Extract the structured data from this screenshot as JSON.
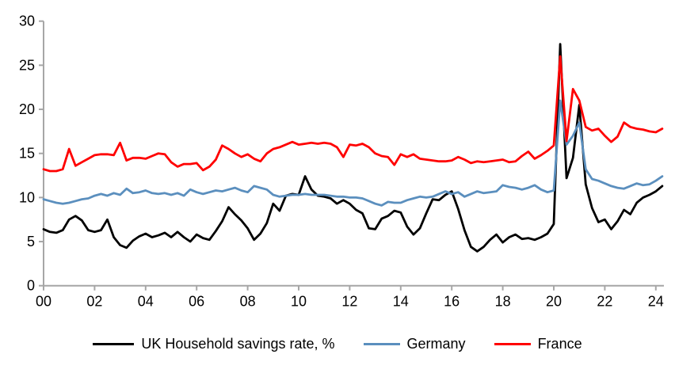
{
  "chart_data": {
    "type": "line",
    "title": "",
    "x_axis": {
      "tick_labels": [
        "00",
        "02",
        "04",
        "06",
        "08",
        "10",
        "12",
        "14",
        "16",
        "18",
        "20",
        "22",
        "24"
      ],
      "tick_years": [
        2000,
        2002,
        2004,
        2006,
        2008,
        2010,
        2012,
        2014,
        2016,
        2018,
        2020,
        2022,
        2024
      ],
      "range": [
        2000,
        2024.5
      ],
      "frequency": "quarterly"
    },
    "y_axis": {
      "tick_labels": [
        "0",
        "5",
        "10",
        "15",
        "20",
        "25",
        "30"
      ],
      "ticks": [
        0,
        5,
        10,
        15,
        20,
        25,
        30
      ],
      "range": [
        0,
        30
      ]
    },
    "grid": "off",
    "legend_position": "bottom",
    "x_start": 2000.0,
    "x_step": 0.25,
    "series": [
      {
        "name": "UK Household savings rate, %",
        "slug": "uk",
        "color": "#000000",
        "values": [
          6.4,
          6.1,
          6.0,
          6.3,
          7.5,
          7.9,
          7.4,
          6.3,
          6.1,
          6.3,
          7.5,
          5.5,
          4.6,
          4.3,
          5.1,
          5.6,
          5.9,
          5.5,
          5.7,
          6.0,
          5.5,
          6.1,
          5.5,
          5.0,
          5.8,
          5.4,
          5.2,
          6.2,
          7.3,
          8.9,
          8.1,
          7.4,
          6.5,
          5.2,
          5.9,
          7.1,
          9.3,
          8.5,
          10.2,
          10.4,
          10.3,
          12.4,
          10.9,
          10.2,
          10.1,
          9.9,
          9.3,
          9.7,
          9.3,
          8.6,
          8.2,
          6.5,
          6.4,
          7.6,
          7.9,
          8.5,
          8.3,
          6.7,
          5.8,
          6.5,
          8.2,
          9.8,
          9.7,
          10.3,
          10.7,
          8.7,
          6.3,
          4.4,
          3.9,
          4.4,
          5.2,
          5.8,
          4.9,
          5.5,
          5.8,
          5.3,
          5.4,
          5.2,
          5.5,
          5.9,
          7.0,
          27.4,
          12.2,
          14.5,
          20.5,
          11.5,
          8.8,
          7.2,
          7.5,
          6.4,
          7.3,
          8.6,
          8.1,
          9.4,
          10.0,
          10.3,
          10.7,
          11.3
        ]
      },
      {
        "name": "Germany",
        "slug": "germany",
        "color": "#5B8FBE",
        "values": [
          9.8,
          9.6,
          9.4,
          9.3,
          9.4,
          9.6,
          9.8,
          9.9,
          10.2,
          10.4,
          10.2,
          10.5,
          10.3,
          11.0,
          10.5,
          10.6,
          10.8,
          10.5,
          10.4,
          10.5,
          10.3,
          10.5,
          10.2,
          10.9,
          10.6,
          10.4,
          10.6,
          10.8,
          10.7,
          10.9,
          11.1,
          10.8,
          10.6,
          11.3,
          11.1,
          10.9,
          10.3,
          10.1,
          10.2,
          10.3,
          10.3,
          10.4,
          10.3,
          10.3,
          10.3,
          10.2,
          10.1,
          10.1,
          10.0,
          10.0,
          9.9,
          9.6,
          9.3,
          9.1,
          9.5,
          9.4,
          9.4,
          9.7,
          9.9,
          10.1,
          10.0,
          10.1,
          10.4,
          10.7,
          10.4,
          10.6,
          10.1,
          10.4,
          10.7,
          10.5,
          10.6,
          10.7,
          11.4,
          11.2,
          11.1,
          10.9,
          11.1,
          11.4,
          10.9,
          10.6,
          10.8,
          21.0,
          16.0,
          17.0,
          18.5,
          13.2,
          12.1,
          11.9,
          11.6,
          11.3,
          11.1,
          11.0,
          11.3,
          11.6,
          11.4,
          11.5,
          11.9,
          12.4
        ]
      },
      {
        "name": "France",
        "slug": "france",
        "color": "#FF0000",
        "values": [
          13.2,
          13.0,
          13.0,
          13.2,
          15.5,
          13.6,
          14.0,
          14.4,
          14.8,
          14.9,
          14.9,
          14.8,
          16.2,
          14.2,
          14.5,
          14.5,
          14.4,
          14.7,
          15.0,
          14.9,
          14.0,
          13.5,
          13.8,
          13.8,
          13.9,
          13.1,
          13.5,
          14.3,
          15.9,
          15.5,
          15.0,
          14.6,
          14.9,
          14.4,
          14.1,
          15.0,
          15.5,
          15.7,
          16.0,
          16.3,
          16.0,
          16.1,
          16.2,
          16.1,
          16.2,
          16.1,
          15.7,
          14.6,
          16.0,
          15.9,
          16.1,
          15.7,
          15.0,
          14.7,
          14.6,
          13.7,
          14.9,
          14.6,
          14.9,
          14.4,
          14.3,
          14.2,
          14.1,
          14.1,
          14.2,
          14.6,
          14.3,
          13.9,
          14.1,
          14.0,
          14.1,
          14.2,
          14.3,
          14.0,
          14.1,
          14.7,
          15.2,
          14.4,
          14.8,
          15.3,
          15.9,
          26.0,
          16.4,
          22.3,
          21.0,
          18.0,
          17.6,
          17.8,
          17.0,
          16.3,
          16.9,
          18.5,
          18.0,
          17.8,
          17.7,
          17.5,
          17.4,
          17.8
        ]
      }
    ],
    "legend": [
      "UK Household savings rate, %",
      "Germany",
      "France"
    ]
  },
  "style": {
    "axis_color": "#A6A6A6",
    "text_color": "#000000",
    "background": "#FFFFFF"
  }
}
